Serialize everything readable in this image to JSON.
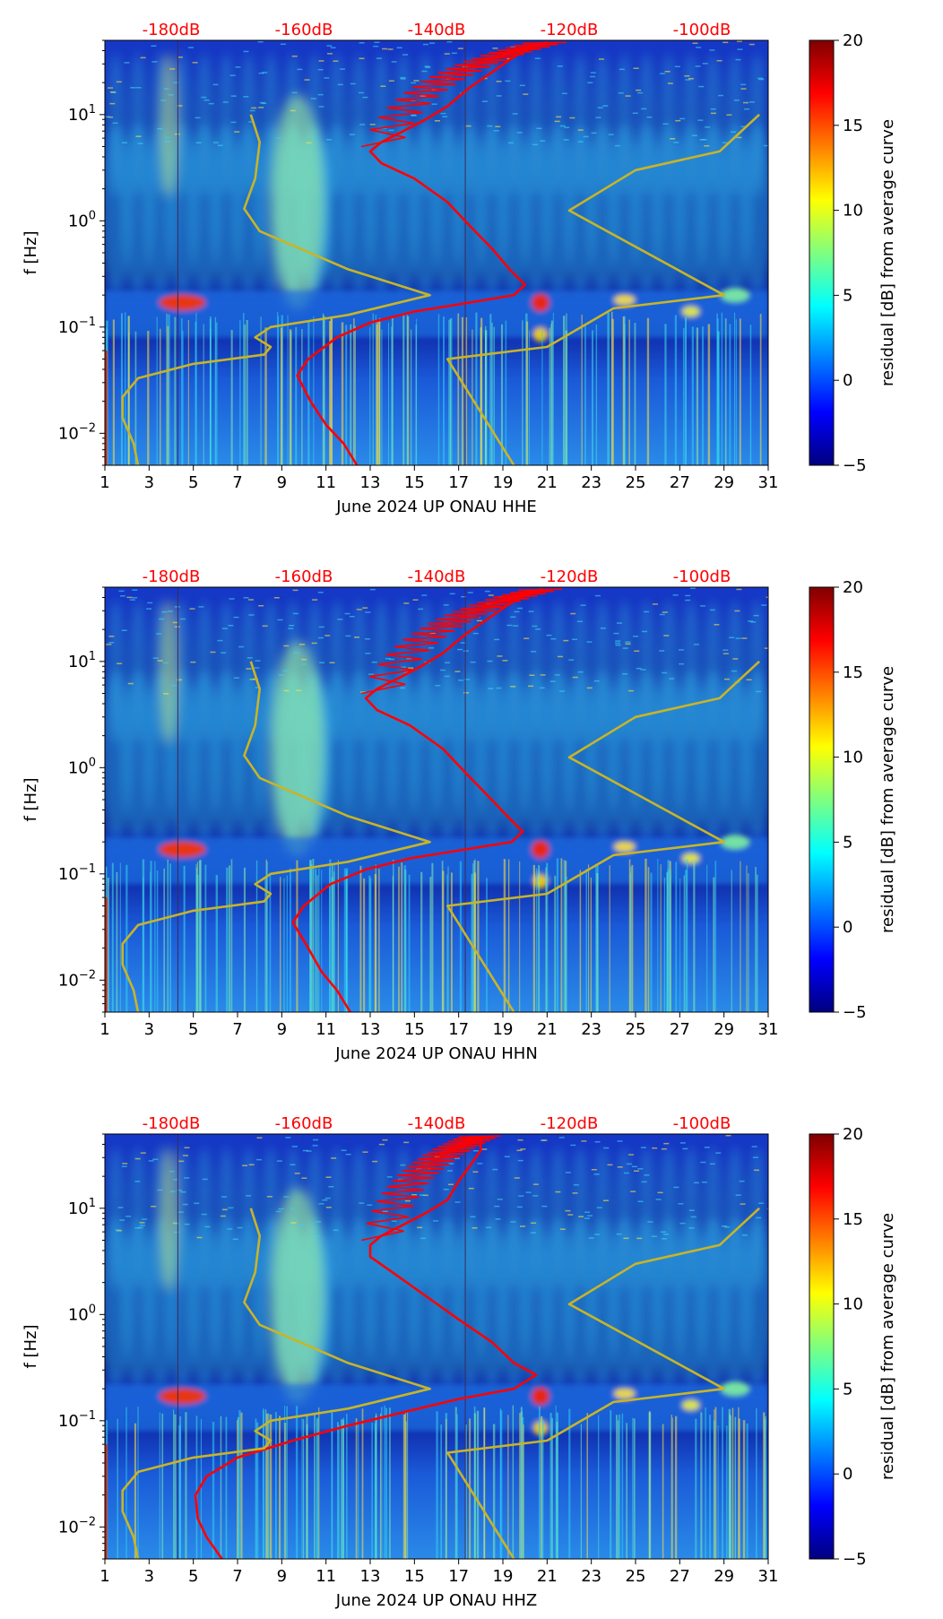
{
  "figure": {
    "colorbar_label": "residual [dB] from average curve",
    "colorbar_ticks": [
      "−5",
      "0",
      "5",
      "10",
      "15",
      "20"
    ],
    "colorscale": [
      "#00007f",
      "#0000ff",
      "#007fff",
      "#00ffff",
      "#7fff7f",
      "#ffff00",
      "#ff7f00",
      "#ff0000",
      "#7f0000"
    ]
  },
  "chart_data": [
    {
      "type": "heatmap",
      "component": "HHE",
      "xlabel": "June 2024 UP ONAU  HHE",
      "ylabel": "f [Hz]",
      "x_ticks": [
        "1",
        "3",
        "5",
        "7",
        "9",
        "11",
        "13",
        "15",
        "17",
        "19",
        "21",
        "23",
        "25",
        "27",
        "29",
        "31"
      ],
      "x_range": [
        1,
        31
      ],
      "y_ticks": [
        {
          "label": "10",
          "exp": "−2",
          "value": 0.01
        },
        {
          "label": "10",
          "exp": "−1",
          "value": 0.1
        },
        {
          "label": "10",
          "exp": "0",
          "value": 1
        },
        {
          "label": "10",
          "exp": "1",
          "value": 10
        }
      ],
      "y_range": [
        0.005,
        50
      ],
      "top_axis": {
        "labels": [
          "-180dB",
          "-160dB",
          "-140dB",
          "-120dB",
          "-100dB"
        ],
        "days": [
          4,
          10,
          16,
          22,
          28
        ],
        "color": "#ff0000"
      },
      "colorbar": {
        "range": [
          -5,
          20
        ]
      },
      "series": [
        {
          "name": "average_psd",
          "color": "#ff0000",
          "points": [
            [
              12.4,
              0.005
            ],
            [
              11.8,
              0.008
            ],
            [
              11,
              0.012
            ],
            [
              10.3,
              0.02
            ],
            [
              9.7,
              0.035
            ],
            [
              10.2,
              0.05
            ],
            [
              11.5,
              0.08
            ],
            [
              13,
              0.11
            ],
            [
              15,
              0.14
            ],
            [
              17.5,
              0.17
            ],
            [
              19.5,
              0.2
            ],
            [
              20,
              0.25
            ],
            [
              19.3,
              0.35
            ],
            [
              18.5,
              0.55
            ],
            [
              17.5,
              0.9
            ],
            [
              16.5,
              1.5
            ],
            [
              15,
              2.5
            ],
            [
              13.5,
              3.5
            ],
            [
              13,
              4.5
            ],
            [
              13.5,
              5.5
            ],
            [
              14.5,
              7
            ],
            [
              15.5,
              9
            ],
            [
              16.5,
              12
            ],
            [
              17.5,
              18
            ],
            [
              18.5,
              25
            ],
            [
              19.5,
              35
            ],
            [
              20.5,
              45
            ],
            [
              21,
              48
            ]
          ]
        },
        {
          "name": "low_noise_model",
          "color": "#c8b428",
          "points": [
            [
              2.5,
              0.005
            ],
            [
              2.3,
              0.008
            ],
            [
              1.8,
              0.014
            ],
            [
              1.8,
              0.022
            ],
            [
              2.5,
              0.033
            ],
            [
              5,
              0.045
            ],
            [
              8.2,
              0.055
            ],
            [
              8.5,
              0.065
            ],
            [
              7.8,
              0.08
            ],
            [
              8.5,
              0.1
            ],
            [
              12,
              0.13
            ],
            [
              15.7,
              0.2
            ],
            [
              12,
              0.35
            ],
            [
              8,
              0.8
            ],
            [
              7.3,
              1.3
            ],
            [
              7.8,
              2.5
            ],
            [
              8,
              5.5
            ],
            [
              7.6,
              10
            ]
          ]
        },
        {
          "name": "high_noise_model",
          "color": "#c8b428",
          "points": [
            [
              19.5,
              0.005
            ],
            [
              16.5,
              0.05
            ],
            [
              21,
              0.065
            ],
            [
              24,
              0.15
            ],
            [
              29,
              0.2
            ],
            [
              22,
              1.25
            ],
            [
              25,
              3
            ],
            [
              28.8,
              4.5
            ],
            [
              30.6,
              10
            ]
          ]
        }
      ]
    },
    {
      "type": "heatmap",
      "component": "HHN",
      "xlabel": "June 2024 UP ONAU  HHN",
      "ylabel": "f [Hz]",
      "x_ticks": [
        "1",
        "3",
        "5",
        "7",
        "9",
        "11",
        "13",
        "15",
        "17",
        "19",
        "21",
        "23",
        "25",
        "27",
        "29",
        "31"
      ],
      "x_range": [
        1,
        31
      ],
      "y_ticks": [
        {
          "label": "10",
          "exp": "−2",
          "value": 0.01
        },
        {
          "label": "10",
          "exp": "−1",
          "value": 0.1
        },
        {
          "label": "10",
          "exp": "0",
          "value": 1
        },
        {
          "label": "10",
          "exp": "1",
          "value": 10
        }
      ],
      "y_range": [
        0.005,
        50
      ],
      "top_axis": {
        "labels": [
          "-180dB",
          "-160dB",
          "-140dB",
          "-120dB",
          "-100dB"
        ],
        "days": [
          4,
          10,
          16,
          22,
          28
        ],
        "color": "#ff0000"
      },
      "colorbar": {
        "range": [
          -5,
          20
        ]
      },
      "series": [
        {
          "name": "average_psd",
          "color": "#ff0000",
          "points": [
            [
              12.1,
              0.005
            ],
            [
              11.5,
              0.008
            ],
            [
              10.8,
              0.012
            ],
            [
              10.2,
              0.02
            ],
            [
              9.5,
              0.035
            ],
            [
              10,
              0.05
            ],
            [
              11.2,
              0.08
            ],
            [
              12.8,
              0.11
            ],
            [
              14.8,
              0.14
            ],
            [
              17.3,
              0.17
            ],
            [
              19.4,
              0.2
            ],
            [
              19.9,
              0.25
            ],
            [
              19.2,
              0.35
            ],
            [
              18.3,
              0.55
            ],
            [
              17.3,
              0.9
            ],
            [
              16.3,
              1.5
            ],
            [
              14.8,
              2.5
            ],
            [
              13.3,
              3.5
            ],
            [
              12.8,
              4.5
            ],
            [
              13.3,
              5.5
            ],
            [
              14.3,
              7
            ],
            [
              15.3,
              9
            ],
            [
              16.3,
              12
            ],
            [
              17.3,
              18
            ],
            [
              18.3,
              25
            ],
            [
              19.3,
              35
            ],
            [
              20.3,
              45
            ],
            [
              20.8,
              48
            ]
          ]
        },
        {
          "name": "low_noise_model",
          "color": "#c8b428",
          "points": [
            [
              2.5,
              0.005
            ],
            [
              2.3,
              0.008
            ],
            [
              1.8,
              0.014
            ],
            [
              1.8,
              0.022
            ],
            [
              2.5,
              0.033
            ],
            [
              5,
              0.045
            ],
            [
              8.2,
              0.055
            ],
            [
              8.5,
              0.065
            ],
            [
              7.8,
              0.08
            ],
            [
              8.5,
              0.1
            ],
            [
              12,
              0.13
            ],
            [
              15.7,
              0.2
            ],
            [
              12,
              0.35
            ],
            [
              8,
              0.8
            ],
            [
              7.3,
              1.3
            ],
            [
              7.8,
              2.5
            ],
            [
              8,
              5.5
            ],
            [
              7.6,
              10
            ]
          ]
        },
        {
          "name": "high_noise_model",
          "color": "#c8b428",
          "points": [
            [
              19.5,
              0.005
            ],
            [
              16.5,
              0.05
            ],
            [
              21,
              0.065
            ],
            [
              24,
              0.15
            ],
            [
              29,
              0.2
            ],
            [
              22,
              1.25
            ],
            [
              25,
              3
            ],
            [
              28.8,
              4.5
            ],
            [
              30.6,
              10
            ]
          ]
        }
      ]
    },
    {
      "type": "heatmap",
      "component": "HHZ",
      "xlabel": "June 2024 UP ONAU  HHZ",
      "ylabel": "f [Hz]",
      "x_ticks": [
        "1",
        "3",
        "5",
        "7",
        "9",
        "11",
        "13",
        "15",
        "17",
        "19",
        "21",
        "23",
        "25",
        "27",
        "29",
        "31"
      ],
      "x_range": [
        1,
        31
      ],
      "y_ticks": [
        {
          "label": "10",
          "exp": "−2",
          "value": 0.01
        },
        {
          "label": "10",
          "exp": "−1",
          "value": 0.1
        },
        {
          "label": "10",
          "exp": "0",
          "value": 1
        },
        {
          "label": "10",
          "exp": "1",
          "value": 10
        }
      ],
      "y_range": [
        0.005,
        50
      ],
      "top_axis": {
        "labels": [
          "-180dB",
          "-160dB",
          "-140dB",
          "-120dB",
          "-100dB"
        ],
        "days": [
          4,
          10,
          16,
          22,
          28
        ],
        "color": "#ff0000"
      },
      "colorbar": {
        "range": [
          -5,
          20
        ]
      },
      "series": [
        {
          "name": "average_psd",
          "color": "#ff0000",
          "points": [
            [
              6.3,
              0.005
            ],
            [
              5.6,
              0.008
            ],
            [
              5.2,
              0.012
            ],
            [
              5.1,
              0.02
            ],
            [
              5.6,
              0.03
            ],
            [
              7,
              0.045
            ],
            [
              9.5,
              0.065
            ],
            [
              12,
              0.09
            ],
            [
              14.5,
              0.12
            ],
            [
              17,
              0.16
            ],
            [
              19.5,
              0.2
            ],
            [
              20.5,
              0.27
            ],
            [
              19.5,
              0.35
            ],
            [
              18.5,
              0.55
            ],
            [
              17,
              0.9
            ],
            [
              15.5,
              1.5
            ],
            [
              14,
              2.5
            ],
            [
              13,
              3.5
            ],
            [
              13,
              4.5
            ],
            [
              13.5,
              5.5
            ],
            [
              14.5,
              7
            ],
            [
              15.5,
              9
            ],
            [
              16.5,
              12
            ],
            [
              17,
              18
            ],
            [
              17.5,
              25
            ],
            [
              18,
              35
            ],
            [
              18,
              45
            ],
            [
              18,
              48
            ]
          ]
        },
        {
          "name": "low_noise_model",
          "color": "#c8b428",
          "points": [
            [
              2.5,
              0.005
            ],
            [
              2.3,
              0.008
            ],
            [
              1.8,
              0.014
            ],
            [
              1.8,
              0.022
            ],
            [
              2.5,
              0.033
            ],
            [
              5,
              0.045
            ],
            [
              8.2,
              0.055
            ],
            [
              8.5,
              0.065
            ],
            [
              7.8,
              0.08
            ],
            [
              8.5,
              0.1
            ],
            [
              12,
              0.13
            ],
            [
              15.7,
              0.2
            ],
            [
              12,
              0.35
            ],
            [
              8,
              0.8
            ],
            [
              7.3,
              1.3
            ],
            [
              7.8,
              2.5
            ],
            [
              8,
              5.5
            ],
            [
              7.6,
              10
            ]
          ]
        },
        {
          "name": "high_noise_model",
          "color": "#c8b428",
          "points": [
            [
              19.5,
              0.005
            ],
            [
              16.5,
              0.05
            ],
            [
              21,
              0.065
            ],
            [
              24,
              0.15
            ],
            [
              29,
              0.2
            ],
            [
              22,
              1.25
            ],
            [
              25,
              3
            ],
            [
              28.8,
              4.5
            ],
            [
              30.6,
              10
            ]
          ]
        }
      ]
    }
  ]
}
